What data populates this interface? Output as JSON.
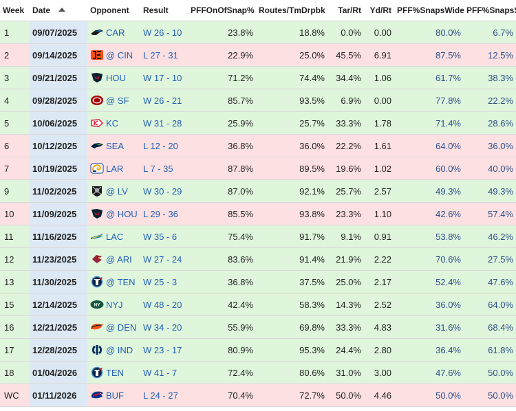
{
  "table": {
    "headers": {
      "week": "Week",
      "date": "Date",
      "opponent": "Opponent",
      "result": "Result",
      "onof": "PFFOnOfSnap%",
      "routes": "Routes/TmDrpbk",
      "tar": "Tar/Rt",
      "yd": "Yd/Rt",
      "wide": "PFF%SnapsWide",
      "slot": "PFF%SnapsSlot"
    },
    "sort": {
      "column": "date",
      "direction": "ascending"
    },
    "rows": [
      {
        "week": "1",
        "date": "09/07/2025",
        "opp": "CAR",
        "logo": "panthers-logo-icon",
        "result": "W 26 - 10",
        "outcome": "win",
        "onof": "23.8%",
        "routes": "18.8%",
        "tar": "0.0%",
        "yd": "0.00",
        "wide": "80.0%",
        "slot": "6.7%"
      },
      {
        "week": "2",
        "date": "09/14/2025",
        "opp": "@ CIN",
        "logo": "bengals-logo-icon",
        "result": "L 27 - 31",
        "outcome": "loss",
        "onof": "22.9%",
        "routes": "25.0%",
        "tar": "45.5%",
        "yd": "6.91",
        "wide": "87.5%",
        "slot": "12.5%"
      },
      {
        "week": "3",
        "date": "09/21/2025",
        "opp": "HOU",
        "logo": "texans-logo-icon",
        "result": "W 17 - 10",
        "outcome": "win",
        "onof": "71.2%",
        "routes": "74.4%",
        "tar": "34.4%",
        "yd": "1.06",
        "wide": "61.7%",
        "slot": "38.3%"
      },
      {
        "week": "4",
        "date": "09/28/2025",
        "opp": "@ SF",
        "logo": "49ers-logo-icon",
        "result": "W 26 - 21",
        "outcome": "win",
        "onof": "85.7%",
        "routes": "93.5%",
        "tar": "6.9%",
        "yd": "0.00",
        "wide": "77.8%",
        "slot": "22.2%"
      },
      {
        "week": "5",
        "date": "10/06/2025",
        "opp": "KC",
        "logo": "chiefs-logo-icon",
        "result": "W 31 - 28",
        "outcome": "win",
        "onof": "25.9%",
        "routes": "25.7%",
        "tar": "33.3%",
        "yd": "1.78",
        "wide": "71.4%",
        "slot": "28.6%"
      },
      {
        "week": "6",
        "date": "10/12/2025",
        "opp": "SEA",
        "logo": "seahawks-logo-icon",
        "result": "L 12 - 20",
        "outcome": "loss",
        "onof": "36.8%",
        "routes": "36.0%",
        "tar": "22.2%",
        "yd": "1.61",
        "wide": "64.0%",
        "slot": "36.0%"
      },
      {
        "week": "7",
        "date": "10/19/2025",
        "opp": "LAR",
        "logo": "rams-logo-icon",
        "result": "L 7 - 35",
        "outcome": "loss",
        "onof": "87.8%",
        "routes": "89.5%",
        "tar": "19.6%",
        "yd": "1.02",
        "wide": "60.0%",
        "slot": "40.0%"
      },
      {
        "week": "9",
        "date": "11/02/2025",
        "opp": "@ LV",
        "logo": "raiders-logo-icon",
        "result": "W 30 - 29",
        "outcome": "win",
        "onof": "87.0%",
        "routes": "92.1%",
        "tar": "25.7%",
        "yd": "2.57",
        "wide": "49.3%",
        "slot": "49.3%"
      },
      {
        "week": "10",
        "date": "11/09/2025",
        "opp": "@ HOU",
        "logo": "texans-logo-icon",
        "result": "L 29 - 36",
        "outcome": "loss",
        "onof": "85.5%",
        "routes": "93.8%",
        "tar": "23.3%",
        "yd": "1.10",
        "wide": "42.6%",
        "slot": "57.4%"
      },
      {
        "week": "11",
        "date": "11/16/2025",
        "opp": "LAC",
        "logo": "chargers-logo-icon",
        "result": "W 35 - 6",
        "outcome": "win",
        "onof": "75.4%",
        "routes": "91.7%",
        "tar": "9.1%",
        "yd": "0.91",
        "wide": "53.8%",
        "slot": "46.2%"
      },
      {
        "week": "12",
        "date": "11/23/2025",
        "opp": "@ ARI",
        "logo": "cardinals-logo-icon",
        "result": "W 27 - 24",
        "outcome": "win",
        "onof": "83.6%",
        "routes": "91.4%",
        "tar": "21.9%",
        "yd": "2.22",
        "wide": "70.6%",
        "slot": "27.5%"
      },
      {
        "week": "13",
        "date": "11/30/2025",
        "opp": "@ TEN",
        "logo": "titans-logo-icon",
        "result": "W 25 - 3",
        "outcome": "win",
        "onof": "36.8%",
        "routes": "37.5%",
        "tar": "25.0%",
        "yd": "2.17",
        "wide": "52.4%",
        "slot": "47.6%"
      },
      {
        "week": "15",
        "date": "12/14/2025",
        "opp": "NYJ",
        "logo": "jets-logo-icon",
        "result": "W 48 - 20",
        "outcome": "win",
        "onof": "42.4%",
        "routes": "58.3%",
        "tar": "14.3%",
        "yd": "2.52",
        "wide": "36.0%",
        "slot": "64.0%"
      },
      {
        "week": "16",
        "date": "12/21/2025",
        "opp": "@ DEN",
        "logo": "broncos-logo-icon",
        "result": "W 34 - 20",
        "outcome": "win",
        "onof": "55.9%",
        "routes": "69.8%",
        "tar": "33.3%",
        "yd": "4.83",
        "wide": "31.6%",
        "slot": "68.4%"
      },
      {
        "week": "17",
        "date": "12/28/2025",
        "opp": "@ IND",
        "logo": "colts-logo-icon",
        "result": "W 23 - 17",
        "outcome": "win",
        "onof": "80.9%",
        "routes": "95.3%",
        "tar": "24.4%",
        "yd": "2.80",
        "wide": "36.4%",
        "slot": "61.8%"
      },
      {
        "week": "18",
        "date": "01/04/2026",
        "opp": "TEN",
        "logo": "titans-logo-icon",
        "result": "W 41 - 7",
        "outcome": "win",
        "onof": "72.4%",
        "routes": "80.6%",
        "tar": "31.0%",
        "yd": "3.00",
        "wide": "47.6%",
        "slot": "50.0%"
      },
      {
        "week": "WC",
        "date": "01/11/2026",
        "opp": "BUF",
        "logo": "bills-logo-icon",
        "result": "L 24 - 27",
        "outcome": "loss",
        "onof": "70.4%",
        "routes": "72.7%",
        "tar": "50.0%",
        "yd": "4.46",
        "wide": "50.0%",
        "slot": "50.0%"
      }
    ]
  },
  "colors": {
    "win_row": "#dff5dc",
    "loss_row": "#fde0e2",
    "date_column": "#dce9f5",
    "link": "#1f5fb5",
    "pct_text": "#2b4f8a"
  }
}
